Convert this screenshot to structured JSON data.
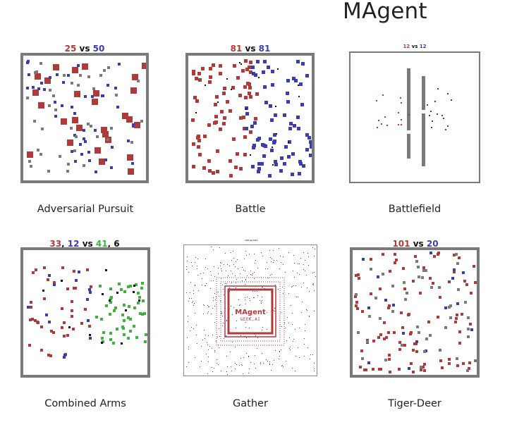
{
  "page": {
    "title": "MAgent"
  },
  "colors": {
    "red": "#b03a3a",
    "blue": "#3b3bb3",
    "green": "#3cb33c",
    "gray": "#7a7a7a",
    "black": "#111111"
  },
  "cards": [
    {
      "caption": "Adversarial Pursuit",
      "score": {
        "a": "25",
        "vs": "vs",
        "b": "50"
      }
    },
    {
      "caption": "Battle",
      "score": {
        "a": "81",
        "vs": "vs",
        "b": "81"
      }
    },
    {
      "caption": "Battlefield",
      "score": {
        "a": "12",
        "vs": "vs",
        "b": "12"
      }
    },
    {
      "caption": "Combined Arms",
      "score": {
        "a": "33",
        "sep1": ",",
        "b": "12",
        "vs": "vs",
        "c": "41",
        "sep2": ",",
        "d": "6"
      }
    },
    {
      "caption": "Gather",
      "score": {
        "a": "100",
        "vs": "vs",
        "b": "101"
      },
      "logo": {
        "text1": "MAgent",
        "text2": "GEEK.AI"
      }
    },
    {
      "caption": "Tiger-Deer",
      "score": {
        "a": "101",
        "vs": "vs",
        "b": "20"
      }
    }
  ]
}
